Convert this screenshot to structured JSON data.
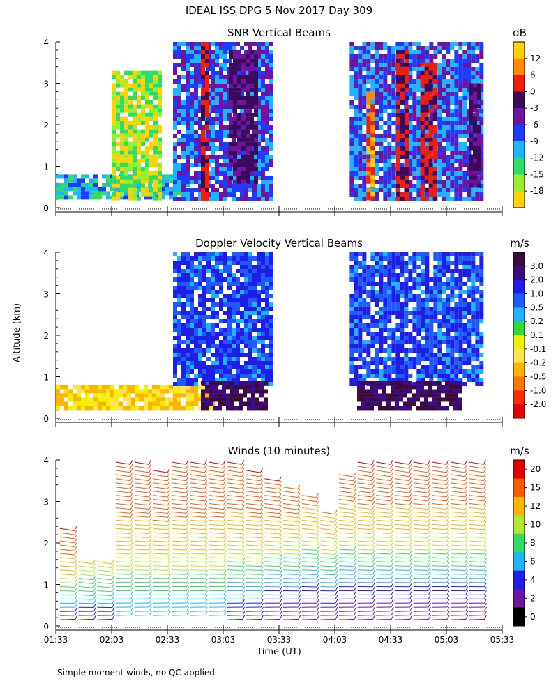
{
  "title": "IDEAL ISS DPG    5 Nov 2017 Day 309",
  "footnote": "Simple moment winds, no QC applied",
  "ylabel": "Altitude (km)",
  "xlabel": "Time (UT)",
  "time_ticks": [
    "01:33",
    "02:03",
    "02:33",
    "03:03",
    "03:33",
    "04:03",
    "04:33",
    "05:03",
    "05:33"
  ],
  "alt_ticks": [
    "0",
    "1",
    "2",
    "3",
    "4"
  ],
  "chart_data": [
    {
      "type": "heatmap",
      "title": "SNR Vertical Beams",
      "unit": "dB",
      "xlim": [
        "01:33",
        "05:33"
      ],
      "ylim": [
        0,
        4
      ],
      "colorbar": {
        "labels": [
          "12",
          "6",
          "0",
          "-3",
          "-6",
          "-9",
          "-12",
          "-15",
          "-18"
        ],
        "colors": [
          "#ffd200",
          "#ff8c00",
          "#f01e0a",
          "#3c0a5a",
          "#6e14a0",
          "#1e3cff",
          "#1eb4ff",
          "#32dc64",
          "#96f032",
          "#ffd200"
        ]
      },
      "echo_regions": [
        {
          "t_start": "01:33",
          "t_end": "02:43",
          "alt_min": 0.2,
          "alt_max": 0.8,
          "level_db": -9
        },
        {
          "t_start": "02:03",
          "t_end": "02:30",
          "alt_min": 0.2,
          "alt_max": 3.3,
          "level_db": -15
        },
        {
          "t_start": "02:36",
          "t_end": "03:30",
          "alt_min": 0.2,
          "alt_max": 4.0,
          "level_db": -6
        },
        {
          "t_start": "02:51",
          "t_end": "02:55",
          "alt_min": 0.2,
          "alt_max": 4.0,
          "level_db": 6
        },
        {
          "t_start": "03:06",
          "t_end": "03:20",
          "alt_min": 0.6,
          "alt_max": 3.8,
          "level_db": 0
        },
        {
          "t_start": "04:11",
          "t_end": "05:21",
          "alt_min": 0.2,
          "alt_max": 4.0,
          "level_db": -6
        },
        {
          "t_start": "04:20",
          "t_end": "04:24",
          "alt_min": 0.2,
          "alt_max": 2.8,
          "level_db": 12
        },
        {
          "t_start": "04:36",
          "t_end": "04:42",
          "alt_min": 0.2,
          "alt_max": 3.8,
          "level_db": 6
        },
        {
          "t_start": "04:49",
          "t_end": "04:56",
          "alt_min": 0.2,
          "alt_max": 3.5,
          "level_db": 6
        },
        {
          "t_start": "05:15",
          "t_end": "05:21",
          "alt_min": 0.5,
          "alt_max": 3.0,
          "level_db": 0
        }
      ]
    },
    {
      "type": "heatmap",
      "title": "Doppler Velocity Vertical Beams",
      "unit": "m/s",
      "xlim": [
        "01:33",
        "05:33"
      ],
      "ylim": [
        0,
        4
      ],
      "colorbar": {
        "labels": [
          "3.0",
          "2.0",
          "1.0",
          "0.5",
          "0.2",
          "0.1",
          "-0.1",
          "-0.2",
          "-0.5",
          "-1.0",
          "-2.0"
        ],
        "colors": [
          "#3c0a3c",
          "#3c0a82",
          "#1e1ee6",
          "#1e5aff",
          "#1eb4ff",
          "#32dc32",
          "#f0f000",
          "#ffe650",
          "#ffb400",
          "#ff7800",
          "#ff2800",
          "#e60000"
        ]
      },
      "echo_regions": [
        {
          "t_start": "01:33",
          "t_end": "02:58",
          "alt_min": 0.2,
          "alt_max": 0.8,
          "level_ms": -0.2
        },
        {
          "t_start": "02:36",
          "t_end": "03:30",
          "alt_min": 0.8,
          "alt_max": 4.0,
          "level_ms": 1.0
        },
        {
          "t_start": "02:51",
          "t_end": "03:25",
          "alt_min": 0.2,
          "alt_max": 0.9,
          "level_ms": 3.0
        },
        {
          "t_start": "04:11",
          "t_end": "05:21",
          "alt_min": 0.8,
          "alt_max": 4.0,
          "level_ms": 1.0
        },
        {
          "t_start": "04:15",
          "t_end": "05:10",
          "alt_min": 0.2,
          "alt_max": 0.9,
          "level_ms": 3.0
        }
      ]
    },
    {
      "type": "scatter",
      "title": "Winds (10 minutes)",
      "unit": "m/s",
      "mark": "wind-barb",
      "xlim": [
        "01:33",
        "05:33"
      ],
      "ylim": [
        0,
        4
      ],
      "colorbar": {
        "labels": [
          "20",
          "15",
          "12",
          "10",
          "8",
          "6",
          "4",
          "2",
          "0"
        ],
        "colors": [
          "#e60000",
          "#ff5a00",
          "#ffb400",
          "#b4e632",
          "#32dc64",
          "#1eb4ff",
          "#1e1ee6",
          "#6e14a0",
          "#000000"
        ]
      },
      "profiles": [
        {
          "time": "01:33",
          "alt_min": 0.2,
          "alt_max": 2.4,
          "speed_min": 4,
          "speed_max": 20
        },
        {
          "time": "01:43",
          "alt_min": 0.2,
          "alt_max": 1.6,
          "speed_min": 4,
          "speed_max": 12
        },
        {
          "time": "01:53",
          "alt_min": 0.2,
          "alt_max": 1.6,
          "speed_min": 4,
          "speed_max": 12
        },
        {
          "time": "02:03",
          "alt_min": 0.3,
          "alt_max": 4.0,
          "speed_min": 6,
          "speed_max": 20
        },
        {
          "time": "02:13",
          "alt_min": 0.3,
          "alt_max": 4.0,
          "speed_min": 6,
          "speed_max": 20
        },
        {
          "time": "02:23",
          "alt_min": 0.3,
          "alt_max": 3.8,
          "speed_min": 6,
          "speed_max": 20
        },
        {
          "time": "02:33",
          "alt_min": 0.3,
          "alt_max": 4.0,
          "speed_min": 6,
          "speed_max": 20
        },
        {
          "time": "02:43",
          "alt_min": 0.3,
          "alt_max": 4.0,
          "speed_min": 6,
          "speed_max": 20
        },
        {
          "time": "02:53",
          "alt_min": 0.3,
          "alt_max": 4.0,
          "speed_min": 6,
          "speed_max": 20
        },
        {
          "time": "03:03",
          "alt_min": 0.2,
          "alt_max": 4.0,
          "speed_min": 4,
          "speed_max": 20
        },
        {
          "time": "03:13",
          "alt_min": 0.2,
          "alt_max": 3.8,
          "speed_min": 4,
          "speed_max": 20
        },
        {
          "time": "03:23",
          "alt_min": 0.2,
          "alt_max": 3.6,
          "speed_min": 2,
          "speed_max": 20
        },
        {
          "time": "03:33",
          "alt_min": 0.2,
          "alt_max": 3.4,
          "speed_min": 2,
          "speed_max": 18
        },
        {
          "time": "03:43",
          "alt_min": 0.2,
          "alt_max": 3.2,
          "speed_min": 2,
          "speed_max": 16
        },
        {
          "time": "03:53",
          "alt_min": 0.2,
          "alt_max": 2.8,
          "speed_min": 2,
          "speed_max": 15
        },
        {
          "time": "04:03",
          "alt_min": 0.2,
          "alt_max": 3.7,
          "speed_min": 2,
          "speed_max": 18
        },
        {
          "time": "04:13",
          "alt_min": 0.2,
          "alt_max": 4.0,
          "speed_min": 2,
          "speed_max": 20
        },
        {
          "time": "04:23",
          "alt_min": 0.2,
          "alt_max": 4.0,
          "speed_min": 2,
          "speed_max": 20
        },
        {
          "time": "04:33",
          "alt_min": 0.2,
          "alt_max": 4.0,
          "speed_min": 2,
          "speed_max": 20
        },
        {
          "time": "04:43",
          "alt_min": 0.2,
          "alt_max": 4.0,
          "speed_min": 2,
          "speed_max": 20
        },
        {
          "time": "04:53",
          "alt_min": 0.2,
          "alt_max": 4.0,
          "speed_min": 2,
          "speed_max": 20
        },
        {
          "time": "05:03",
          "alt_min": 0.2,
          "alt_max": 4.0,
          "speed_min": 2,
          "speed_max": 20
        },
        {
          "time": "05:13",
          "alt_min": 0.2,
          "alt_max": 4.0,
          "speed_min": 2,
          "speed_max": 20
        }
      ]
    }
  ]
}
